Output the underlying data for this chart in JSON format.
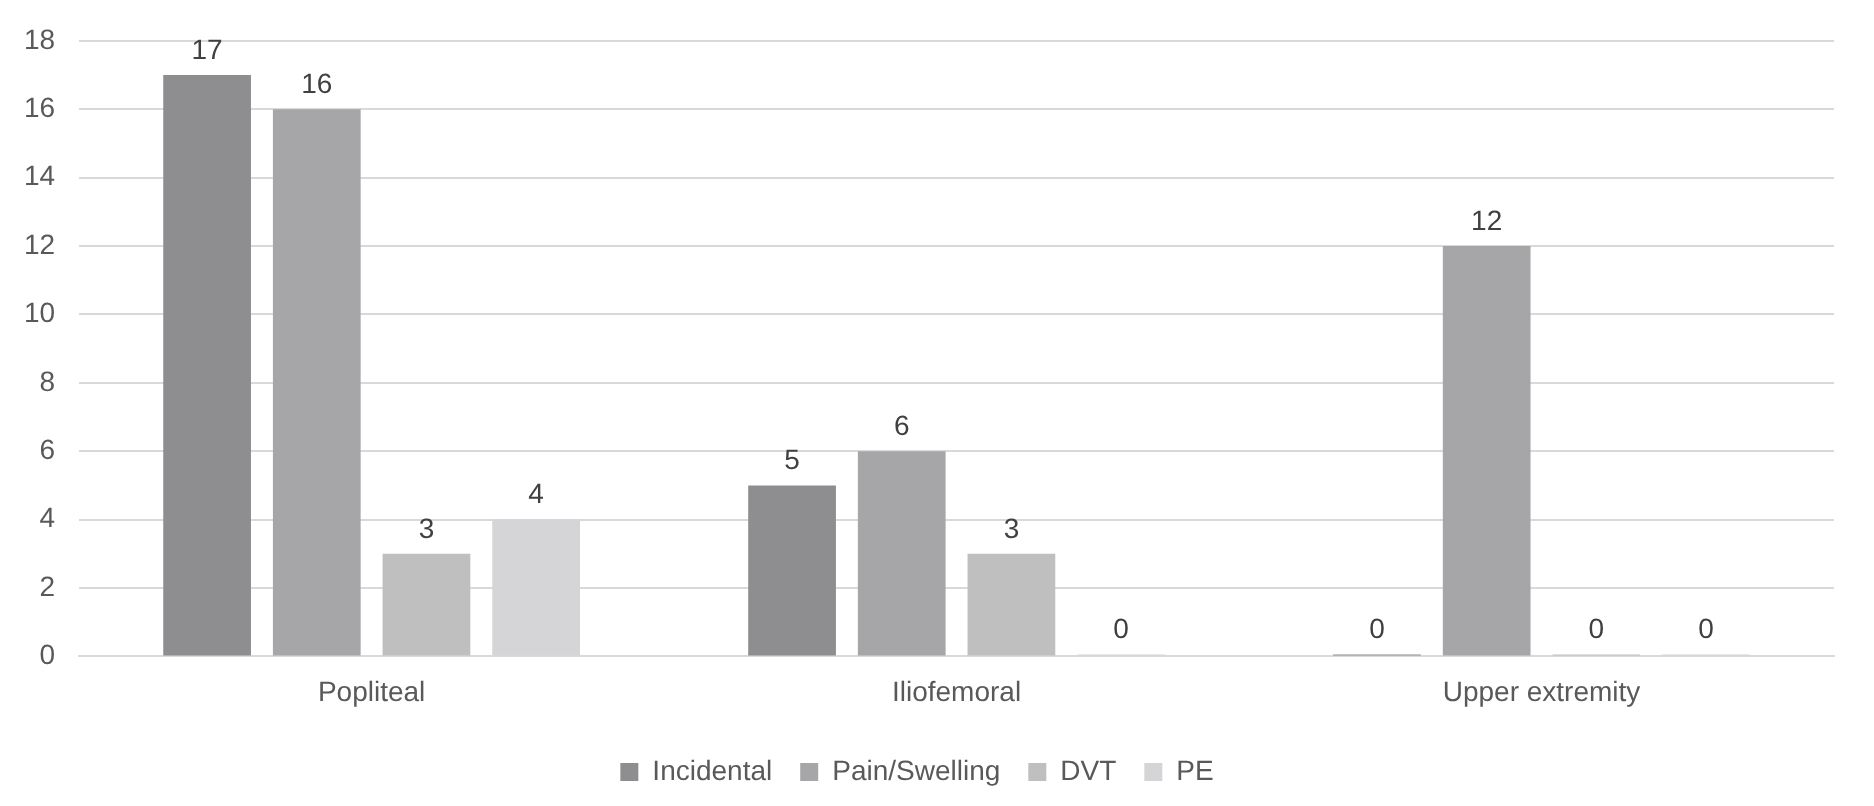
{
  "chart_data": {
    "type": "bar",
    "categories": [
      "Popliteal",
      "Iliofemoral",
      "Upper extremity"
    ],
    "series": [
      {
        "name": "Incidental",
        "color": "#8e8e90",
        "values": [
          17,
          5,
          0
        ]
      },
      {
        "name": "Pain/Swelling",
        "color": "#a6a6a8",
        "values": [
          16,
          6,
          12
        ]
      },
      {
        "name": "DVT",
        "color": "#bfbfbf",
        "values": [
          3,
          3,
          0
        ]
      },
      {
        "name": "PE",
        "color": "#d5d5d7",
        "values": [
          4,
          0,
          0
        ]
      }
    ],
    "ylim": [
      0,
      18
    ],
    "yticks": [
      0,
      2,
      4,
      6,
      8,
      10,
      12,
      14,
      16,
      18
    ],
    "grid": "y",
    "legend": "bottom",
    "data_labels": true
  }
}
